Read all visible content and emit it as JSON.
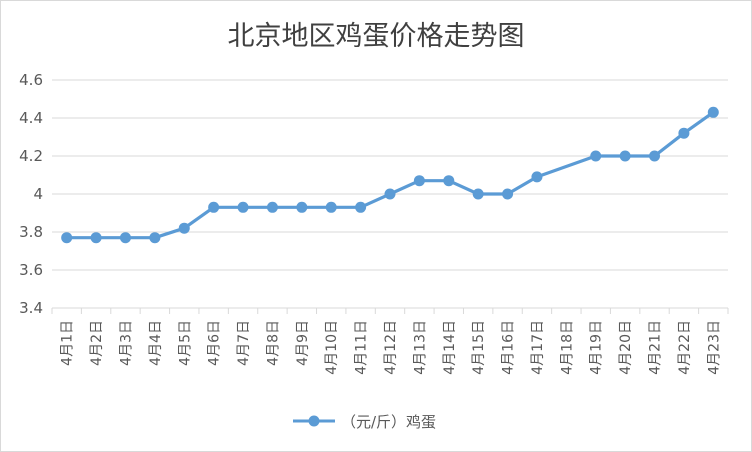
{
  "chart_data": {
    "type": "line",
    "title": "北京地区鸡蛋价格走势图",
    "categories": [
      "4月1日",
      "4月2日",
      "4月3日",
      "4月4日",
      "4月5日",
      "4月6日",
      "4月7日",
      "4月8日",
      "4月9日",
      "4月10日",
      "4月11日",
      "4月12日",
      "4月13日",
      "4月14日",
      "4月15日",
      "4月16日",
      "4月17日",
      "4月18日",
      "4月19日",
      "4月20日",
      "4月21日",
      "4月22日",
      "4月23日"
    ],
    "series": [
      {
        "name": "（元/斤）鸡蛋",
        "values": [
          3.77,
          3.77,
          3.77,
          3.77,
          3.82,
          3.93,
          3.93,
          3.93,
          3.93,
          3.93,
          3.93,
          4.0,
          4.07,
          4.07,
          4.0,
          4.0,
          4.09,
          null,
          4.2,
          4.2,
          4.2,
          4.32,
          4.43
        ]
      }
    ],
    "yticks": [
      "3.4",
      "3.6",
      "3.8",
      "4",
      "4.2",
      "4.4",
      "4.6"
    ],
    "ylim": [
      3.4,
      4.6
    ],
    "grid": "horizontal",
    "legend": "bottom",
    "colors": {
      "series": "#5b9bd5",
      "grid": "#d9d9d9",
      "text": "#595959",
      "title": "#404040"
    }
  }
}
